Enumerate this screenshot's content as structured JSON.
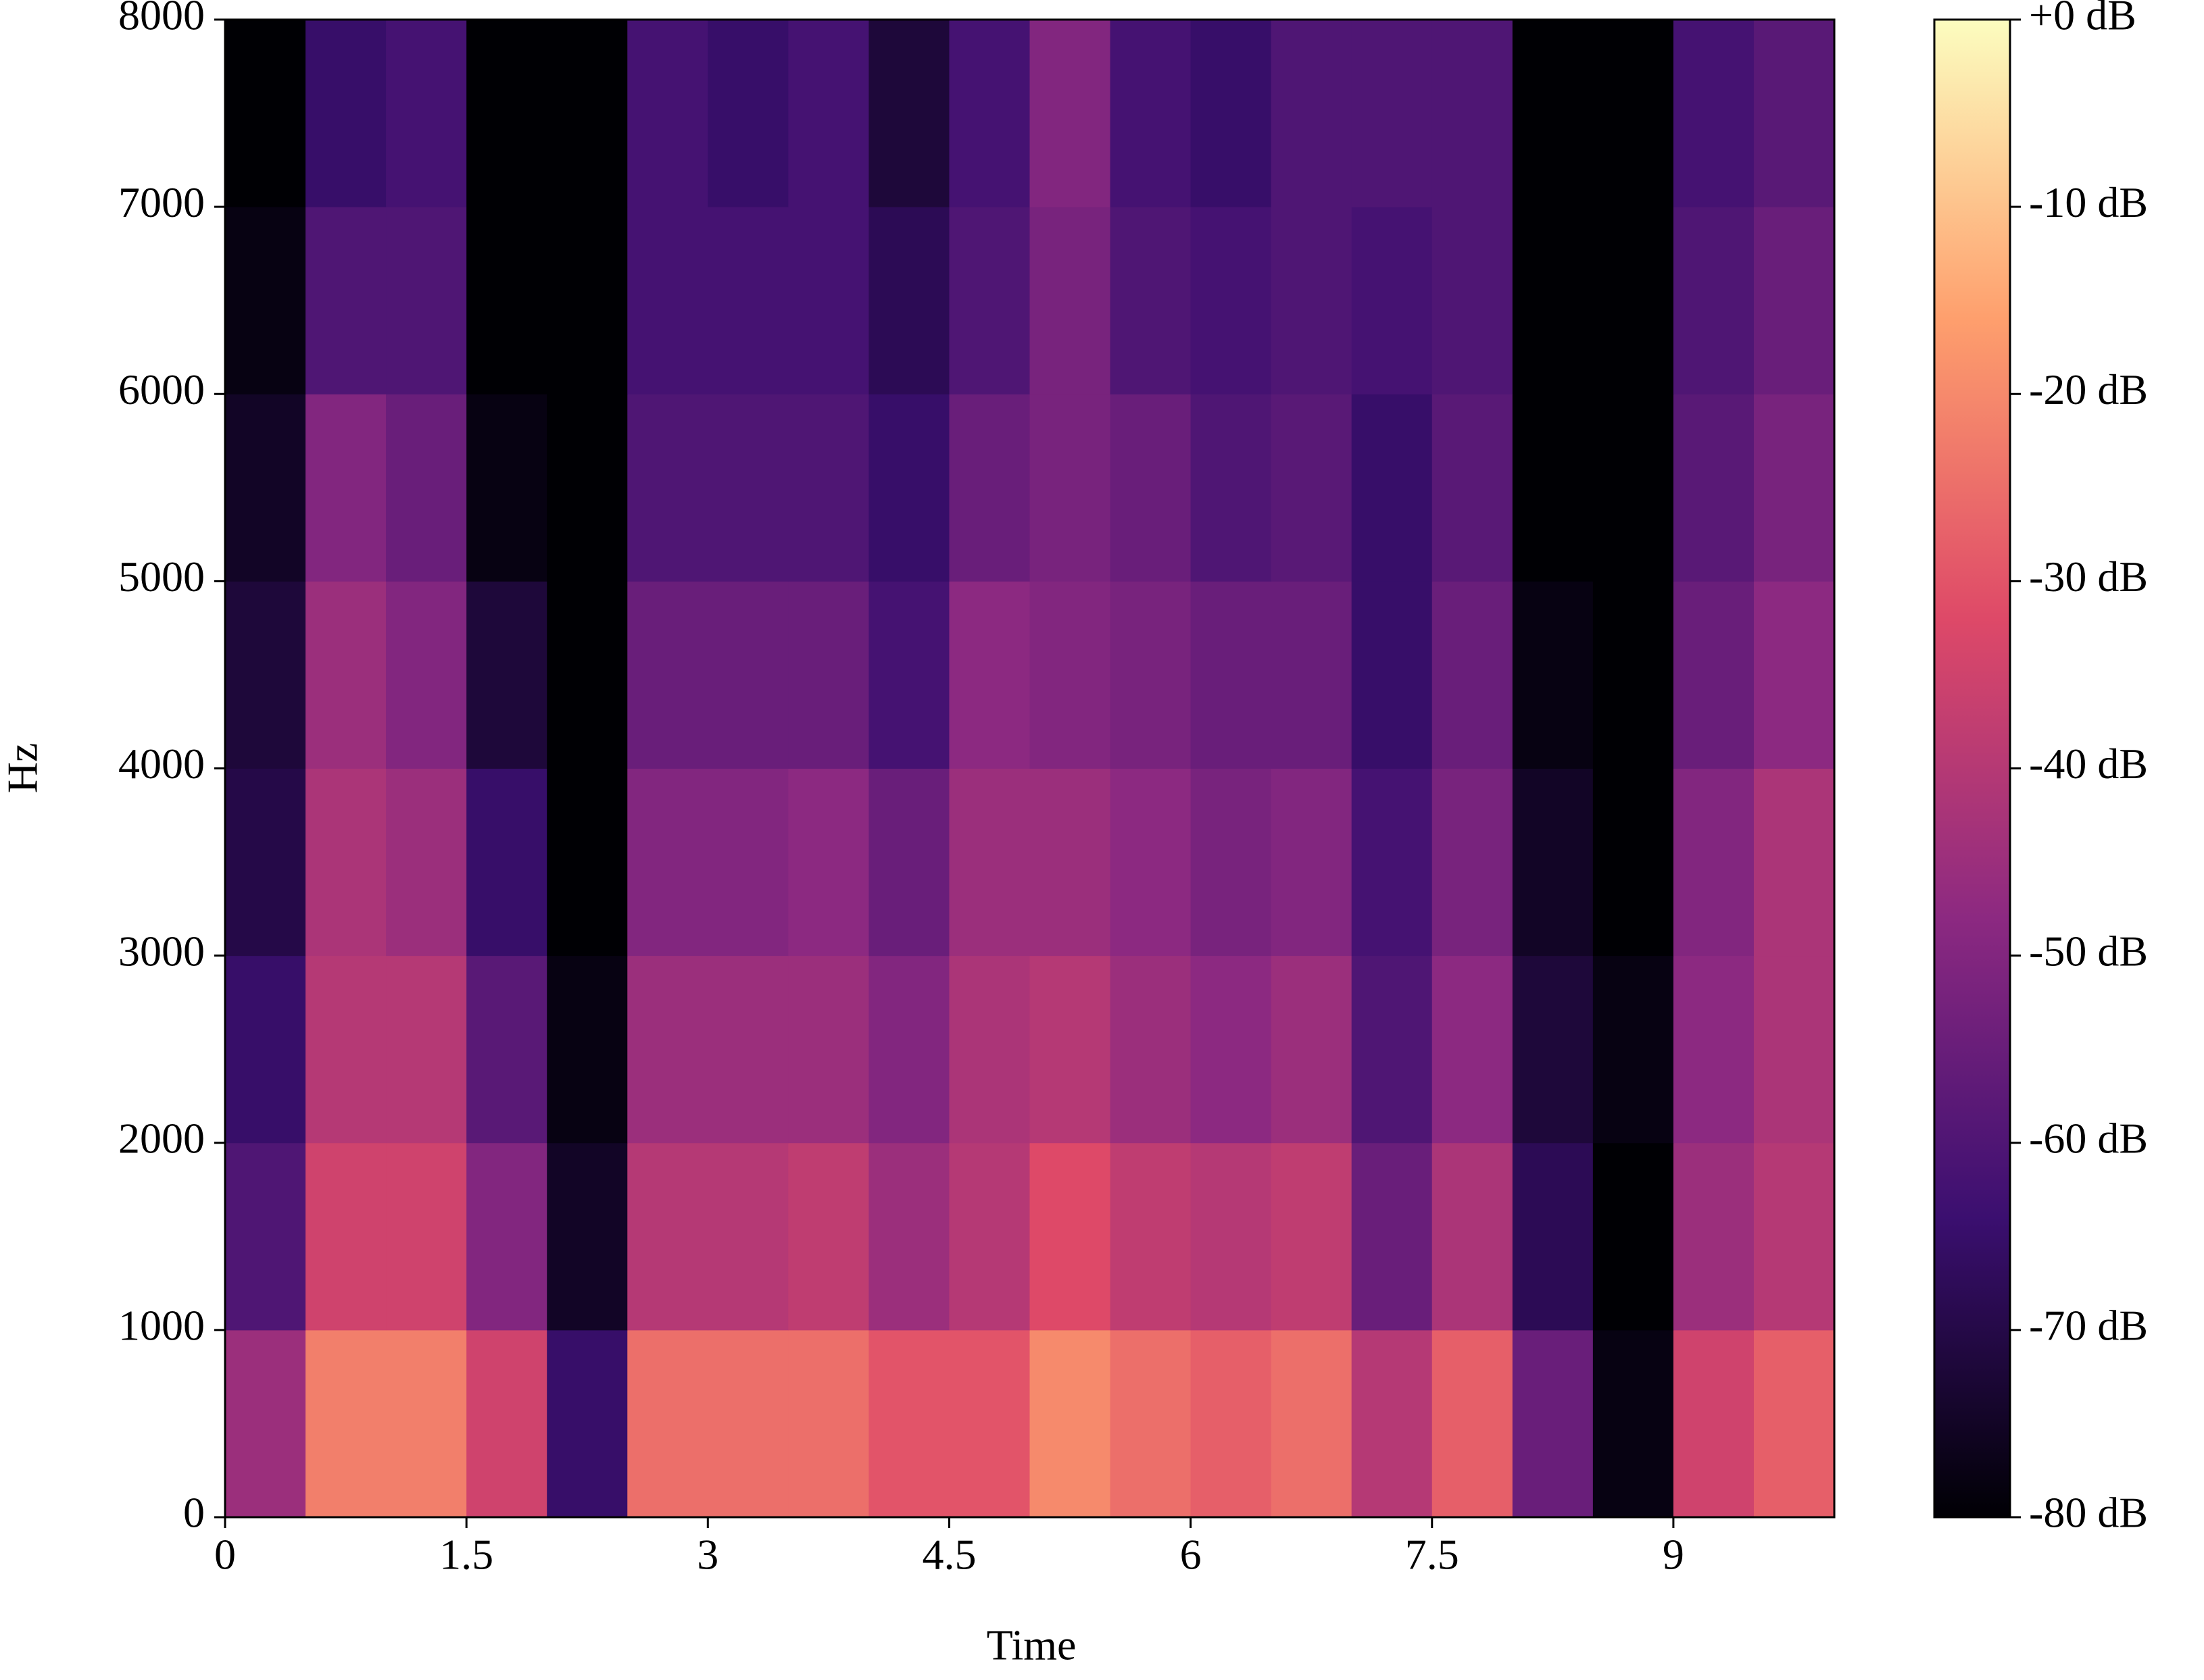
{
  "chart_data": {
    "type": "spectrogram",
    "xlabel": "Time",
    "ylabel": "Hz",
    "xlim": [
      0,
      10
    ],
    "ylim": [
      0,
      8000
    ],
    "xticks": [
      0,
      1.5,
      3,
      4.5,
      6,
      7.5,
      9
    ],
    "yticks": [
      0,
      1000,
      2000,
      3000,
      4000,
      5000,
      6000,
      7000,
      8000
    ],
    "xbins": [
      0,
      0.5,
      1,
      1.5,
      2,
      2.5,
      3,
      3.5,
      4,
      4.5,
      5,
      5.5,
      6,
      6.5,
      7,
      7.5,
      8,
      8.5,
      9,
      9.5,
      10
    ],
    "ybins": [
      0,
      1000,
      2000,
      3000,
      4000,
      5000,
      6000,
      7000,
      8000
    ],
    "values": [
      [
        -45,
        -22,
        -22,
        -35,
        -65,
        -25,
        -25,
        -25,
        -30,
        -30,
        -20,
        -25,
        -28,
        -25,
        -40,
        -28,
        -55,
        -78,
        -35,
        -28
      ],
      [
        -60,
        -35,
        -35,
        -50,
        -75,
        -40,
        -40,
        -38,
        -45,
        -40,
        -32,
        -38,
        -40,
        -38,
        -55,
        -42,
        -68,
        -80,
        -45,
        -40
      ],
      [
        -65,
        -40,
        -40,
        -58,
        -78,
        -45,
        -45,
        -45,
        -50,
        -42,
        -40,
        -45,
        -48,
        -45,
        -60,
        -48,
        -72,
        -78,
        -48,
        -42
      ],
      [
        -70,
        -42,
        -45,
        -65,
        -80,
        -50,
        -50,
        -48,
        -55,
        -45,
        -45,
        -48,
        -52,
        -50,
        -62,
        -52,
        -75,
        -80,
        -50,
        -42
      ],
      [
        -72,
        -45,
        -50,
        -72,
        -80,
        -55,
        -55,
        -55,
        -62,
        -48,
        -50,
        -52,
        -55,
        -55,
        -65,
        -55,
        -78,
        -80,
        -55,
        -48
      ],
      [
        -75,
        -50,
        -55,
        -78,
        -80,
        -60,
        -60,
        -60,
        -65,
        -55,
        -52,
        -55,
        -60,
        -58,
        -65,
        -58,
        -80,
        -80,
        -58,
        -52
      ],
      [
        -78,
        -60,
        -60,
        -80,
        -80,
        -62,
        -62,
        -62,
        -68,
        -60,
        -52,
        -60,
        -62,
        -60,
        -62,
        -60,
        -80,
        -80,
        -60,
        -55
      ],
      [
        -80,
        -65,
        -62,
        -80,
        -80,
        -62,
        -65,
        -62,
        -72,
        -62,
        -50,
        -62,
        -65,
        -60,
        -60,
        -60,
        -80,
        -80,
        -62,
        -58
      ]
    ],
    "clim": [
      -80,
      0
    ],
    "colormap": [
      "#000004",
      "#3b0f70",
      "#8c2981",
      "#de4968",
      "#fe9f6d",
      "#fcfdbf"
    ],
    "cticks": [
      {
        "value": 0,
        "label": "+0 dB"
      },
      {
        "value": -10,
        "label": "-10 dB"
      },
      {
        "value": -20,
        "label": "-20 dB"
      },
      {
        "value": -30,
        "label": "-30 dB"
      },
      {
        "value": -40,
        "label": "-40 dB"
      },
      {
        "value": -50,
        "label": "-50 dB"
      },
      {
        "value": -60,
        "label": "-60 dB"
      },
      {
        "value": -70,
        "label": "-70 dB"
      },
      {
        "value": -80,
        "label": "-80 dB"
      }
    ]
  }
}
